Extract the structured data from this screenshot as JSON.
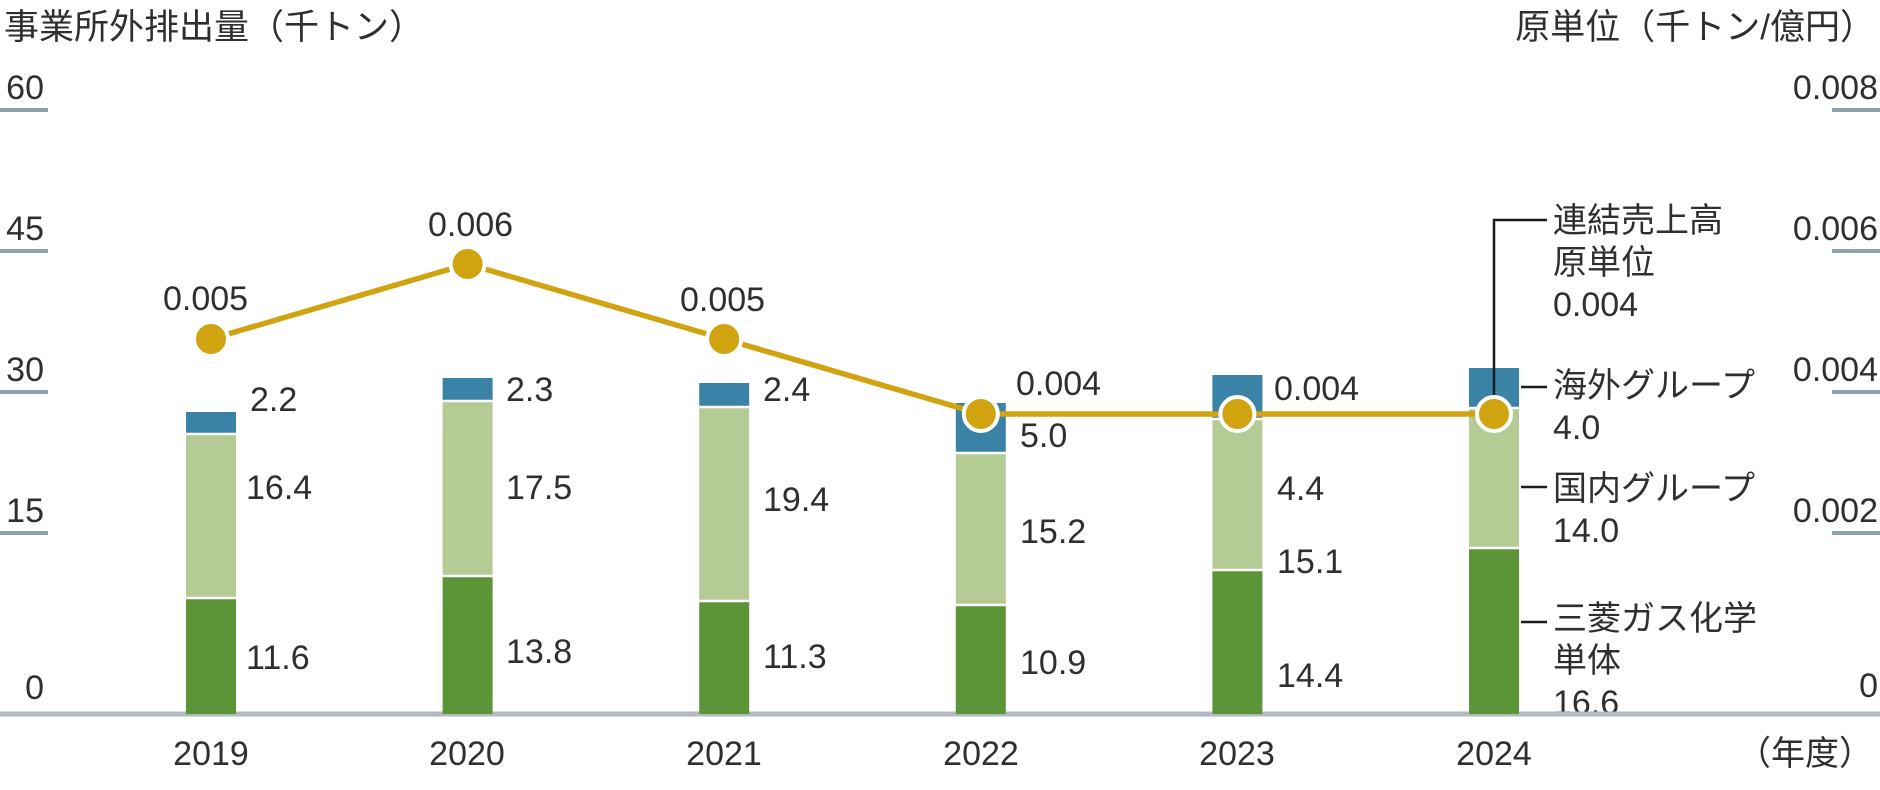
{
  "titles": {
    "left_axis": "事業所外排出量（千トン）",
    "right_axis": "原単位（千トン/億円）",
    "x_axis_unit": "（年度）"
  },
  "left_axis": {
    "ticks": [
      "60",
      "45",
      "30",
      "15"
    ],
    "zero": "0"
  },
  "right_axis": {
    "ticks": [
      "0.008",
      "0.006",
      "0.004",
      "0.002"
    ],
    "zero": "0"
  },
  "chart_data": {
    "type": "bar+line",
    "categories": [
      "2019",
      "2020",
      "2021",
      "2022",
      "2023",
      "2024"
    ],
    "bar_series": [
      {
        "name": "三菱ガス化学単体",
        "color": "#5c9438",
        "values": [
          11.6,
          13.8,
          11.3,
          10.9,
          14.4,
          16.6
        ]
      },
      {
        "name": "国内グループ",
        "color": "#b5cb96",
        "values": [
          16.4,
          17.5,
          19.4,
          15.2,
          15.1,
          14.0
        ]
      },
      {
        "name": "海外グループ",
        "color": "#3a83a6",
        "values": [
          2.2,
          2.3,
          2.4,
          5.0,
          4.4,
          4.0
        ]
      }
    ],
    "line_series": {
      "name": "連結売上高原単位",
      "color": "#d2a311",
      "values": [
        0.005,
        0.006,
        0.005,
        0.004,
        0.004,
        0.004
      ]
    },
    "left_ylim": [
      0,
      60
    ],
    "right_ylim": [
      0,
      0.008
    ],
    "grid": "off",
    "legend_position": "right-callout",
    "legend": [
      {
        "lines": [
          "連結売上高",
          "原単位"
        ],
        "value": "0.004"
      },
      {
        "lines": [
          "海外グループ"
        ],
        "value": "4.0"
      },
      {
        "lines": [
          "国内グループ"
        ],
        "value": "14.0"
      },
      {
        "lines": [
          "三菱ガス化学",
          "単体"
        ],
        "value": "16.6"
      }
    ],
    "colors": {
      "axis_line": "#b2bac0",
      "tick": "#8ca3ac",
      "text": "#2f2f2f",
      "callout": "#1c1c1c",
      "marker_ring": "#ffffff"
    }
  }
}
